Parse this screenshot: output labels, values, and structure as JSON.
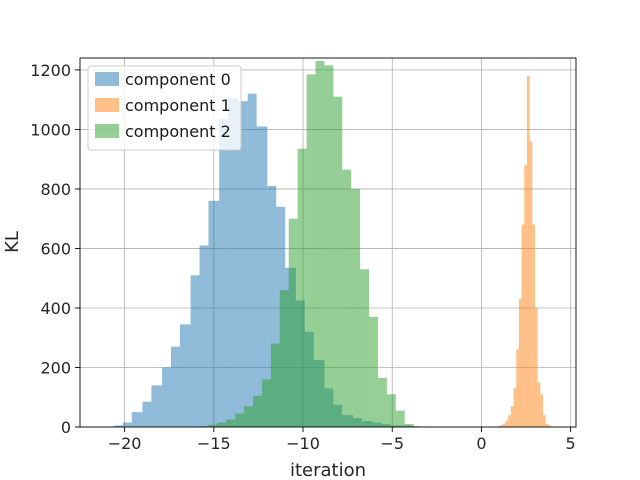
{
  "chart_data": {
    "type": "histogram",
    "xlabel": "iteration",
    "ylabel": "KL",
    "xlim": [
      -22.5,
      5.3
    ],
    "ylim": [
      0,
      1240
    ],
    "xticks": [
      -20,
      -15,
      -10,
      -5,
      0,
      5
    ],
    "xtick_labels": [
      "−20",
      "−15",
      "−10",
      "−5",
      "0",
      "5"
    ],
    "yticks": [
      0,
      200,
      400,
      600,
      800,
      1000,
      1200
    ],
    "ytick_labels": [
      "0",
      "200",
      "400",
      "600",
      "800",
      "1000",
      "1200"
    ],
    "grid": true,
    "legend_position": "top-left",
    "series": [
      {
        "name": "component 0",
        "color": "#1f77b4",
        "opacity": 0.5,
        "bins": [
          [
            -20.6,
            -20.1,
            5
          ],
          [
            -20.1,
            -19.6,
            15
          ],
          [
            -19.6,
            -19.0,
            50
          ],
          [
            -19.0,
            -18.5,
            85
          ],
          [
            -18.5,
            -17.9,
            140
          ],
          [
            -17.9,
            -17.4,
            200
          ],
          [
            -17.4,
            -16.9,
            270
          ],
          [
            -16.9,
            -16.3,
            345
          ],
          [
            -16.3,
            -15.8,
            510
          ],
          [
            -15.8,
            -15.3,
            610
          ],
          [
            -15.3,
            -14.7,
            760
          ],
          [
            -14.7,
            -14.2,
            1035
          ],
          [
            -14.2,
            -13.6,
            1105
          ],
          [
            -13.6,
            -13.1,
            1095
          ],
          [
            -13.1,
            -12.6,
            1120
          ],
          [
            -12.6,
            -12.0,
            1010
          ],
          [
            -12.0,
            -11.5,
            810
          ],
          [
            -11.5,
            -11.0,
            740
          ],
          [
            -11.0,
            -10.4,
            535
          ],
          [
            -10.4,
            -9.9,
            425
          ],
          [
            -9.9,
            -9.4,
            320
          ],
          [
            -9.4,
            -8.8,
            225
          ],
          [
            -8.8,
            -8.3,
            130
          ],
          [
            -8.3,
            -7.8,
            75
          ],
          [
            -7.8,
            -7.2,
            40
          ],
          [
            -7.2,
            -6.7,
            30
          ],
          [
            -6.7,
            -6.1,
            20
          ],
          [
            -6.1,
            -5.6,
            15
          ],
          [
            -5.6,
            -5.1,
            10
          ],
          [
            -5.1,
            -4.5,
            5
          ],
          [
            -4.5,
            -4.0,
            5
          ],
          [
            -4.0,
            -3.5,
            3
          ],
          [
            -3.5,
            -2.9,
            2
          ]
        ]
      },
      {
        "name": "component 1",
        "color": "#ff7f0e",
        "opacity": 0.5,
        "bins": [
          [
            0.9,
            1.05,
            3
          ],
          [
            1.05,
            1.2,
            6
          ],
          [
            1.2,
            1.35,
            12
          ],
          [
            1.35,
            1.5,
            22
          ],
          [
            1.5,
            1.65,
            40
          ],
          [
            1.65,
            1.8,
            70
          ],
          [
            1.8,
            1.95,
            130
          ],
          [
            1.95,
            2.1,
            260
          ],
          [
            2.1,
            2.25,
            430
          ],
          [
            2.25,
            2.4,
            680
          ],
          [
            2.4,
            2.55,
            880
          ],
          [
            2.55,
            2.7,
            1180
          ],
          [
            2.7,
            2.85,
            960
          ],
          [
            2.85,
            3.0,
            680
          ],
          [
            3.0,
            3.15,
            400
          ],
          [
            3.15,
            3.3,
            150
          ],
          [
            3.3,
            3.45,
            110
          ],
          [
            3.45,
            3.6,
            40
          ],
          [
            3.6,
            3.75,
            10
          ],
          [
            3.75,
            3.9,
            5
          ]
        ]
      },
      {
        "name": "component 2",
        "color": "#2ca02c",
        "opacity": 0.5,
        "bins": [
          [
            -15.8,
            -15.3,
            3
          ],
          [
            -15.3,
            -14.8,
            8
          ],
          [
            -14.8,
            -14.3,
            15
          ],
          [
            -14.3,
            -13.8,
            25
          ],
          [
            -13.8,
            -13.3,
            45
          ],
          [
            -13.3,
            -12.8,
            70
          ],
          [
            -12.8,
            -12.3,
            105
          ],
          [
            -12.3,
            -11.8,
            160
          ],
          [
            -11.8,
            -11.3,
            280
          ],
          [
            -11.3,
            -10.8,
            460
          ],
          [
            -10.8,
            -10.3,
            700
          ],
          [
            -10.3,
            -9.8,
            935
          ],
          [
            -9.8,
            -9.3,
            1185
          ],
          [
            -9.3,
            -8.8,
            1230
          ],
          [
            -8.8,
            -8.3,
            1215
          ],
          [
            -8.3,
            -7.8,
            1110
          ],
          [
            -7.8,
            -7.3,
            865
          ],
          [
            -7.3,
            -6.8,
            800
          ],
          [
            -6.8,
            -6.3,
            530
          ],
          [
            -6.3,
            -5.8,
            370
          ],
          [
            -5.8,
            -5.3,
            165
          ],
          [
            -5.3,
            -4.8,
            110
          ],
          [
            -4.8,
            -4.3,
            55
          ],
          [
            -4.3,
            -3.8,
            10
          ]
        ]
      }
    ]
  }
}
